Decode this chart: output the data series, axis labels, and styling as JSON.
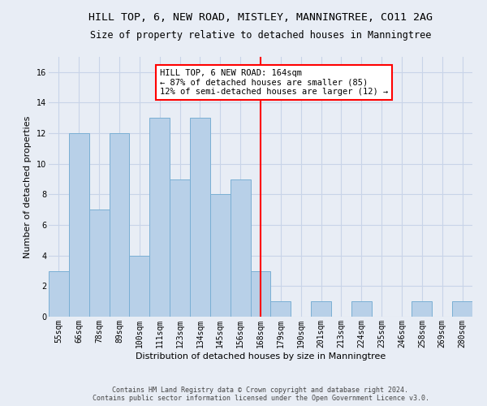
{
  "title_line1": "HILL TOP, 6, NEW ROAD, MISTLEY, MANNINGTREE, CO11 2AG",
  "title_line2": "Size of property relative to detached houses in Manningtree",
  "xlabel": "Distribution of detached houses by size in Manningtree",
  "ylabel": "Number of detached properties",
  "footer": "Contains HM Land Registry data © Crown copyright and database right 2024.\nContains public sector information licensed under the Open Government Licence v3.0.",
  "categories": [
    "55sqm",
    "66sqm",
    "78sqm",
    "89sqm",
    "100sqm",
    "111sqm",
    "123sqm",
    "134sqm",
    "145sqm",
    "156sqm",
    "168sqm",
    "179sqm",
    "190sqm",
    "201sqm",
    "213sqm",
    "224sqm",
    "235sqm",
    "246sqm",
    "258sqm",
    "269sqm",
    "280sqm"
  ],
  "values": [
    3,
    12,
    7,
    12,
    4,
    13,
    9,
    13,
    8,
    9,
    3,
    1,
    0,
    1,
    0,
    1,
    0,
    0,
    1,
    0,
    1
  ],
  "bar_color": "#b8d0e8",
  "bar_edge_color": "#7aafd4",
  "property_line_x": 10.0,
  "annotation_text": "HILL TOP, 6 NEW ROAD: 164sqm\n← 87% of detached houses are smaller (85)\n12% of semi-detached houses are larger (12) →",
  "annotation_box_color": "white",
  "annotation_box_edge_color": "red",
  "vline_color": "red",
  "ylim": [
    0,
    17
  ],
  "yticks": [
    0,
    2,
    4,
    6,
    8,
    10,
    12,
    14,
    16
  ],
  "grid_color": "#c8d4e8",
  "background_color": "#e8edf5",
  "title_fontsize": 9.5,
  "subtitle_fontsize": 8.5,
  "label_fontsize": 8,
  "tick_fontsize": 7,
  "footer_fontsize": 6,
  "annot_fontsize": 7.5
}
